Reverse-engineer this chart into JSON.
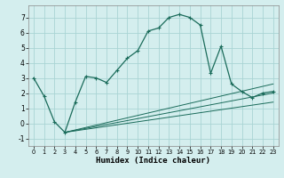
{
  "title": "",
  "xlabel": "Humidex (Indice chaleur)",
  "ylabel": "",
  "bg_color": "#d4eeee",
  "line_color": "#1a6b5a",
  "grid_color": "#aad4d4",
  "xlim": [
    -0.5,
    23.5
  ],
  "ylim": [
    -1.5,
    7.8
  ],
  "xticks": [
    0,
    1,
    2,
    3,
    4,
    5,
    6,
    7,
    8,
    9,
    10,
    11,
    12,
    13,
    14,
    15,
    16,
    17,
    18,
    19,
    20,
    21,
    22,
    23
  ],
  "yticks": [
    -1,
    0,
    1,
    2,
    3,
    4,
    5,
    6,
    7
  ],
  "series": {
    "main": {
      "x": [
        0,
        1,
        2,
        3,
        4,
        5,
        6,
        7,
        8,
        9,
        10,
        11,
        12,
        13,
        14,
        15,
        16,
        17,
        18,
        19,
        20,
        21,
        22,
        23
      ],
      "y": [
        3.0,
        1.8,
        0.1,
        -0.6,
        1.4,
        3.1,
        3.0,
        2.7,
        3.5,
        4.3,
        4.8,
        6.1,
        6.3,
        7.0,
        7.2,
        7.0,
        6.5,
        3.3,
        5.1,
        2.6,
        2.1,
        1.7,
        2.0,
        2.1
      ]
    },
    "line1": {
      "x": [
        3,
        23
      ],
      "y": [
        -0.6,
        2.6
      ]
    },
    "line2": {
      "x": [
        3,
        23
      ],
      "y": [
        -0.6,
        2.0
      ]
    },
    "line3": {
      "x": [
        3,
        23
      ],
      "y": [
        -0.6,
        1.4
      ]
    }
  }
}
